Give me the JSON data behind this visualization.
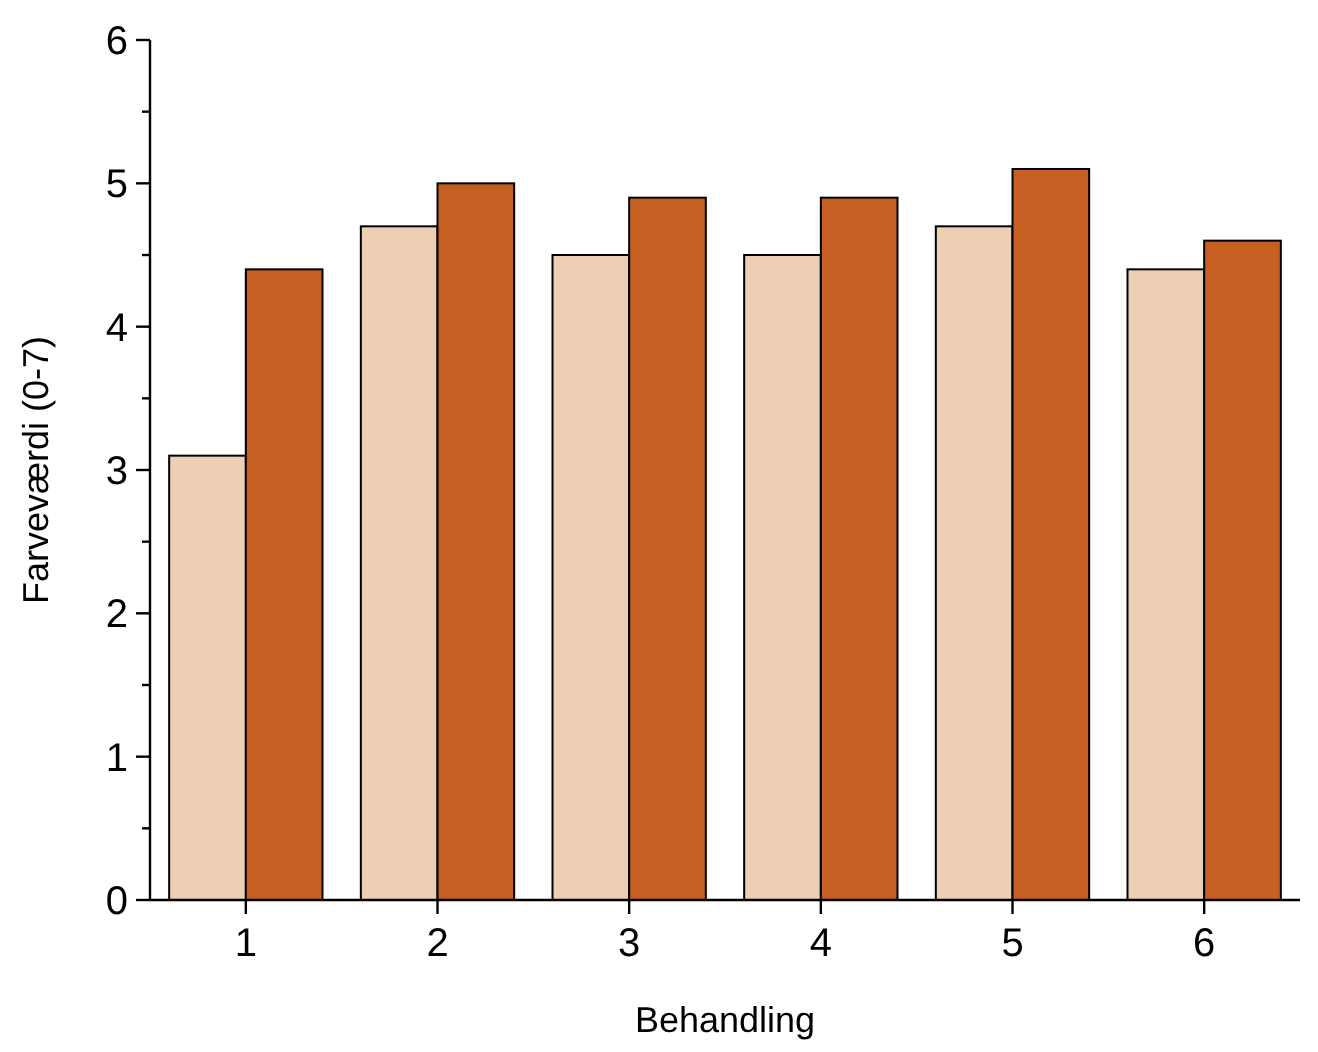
{
  "chart_data": {
    "type": "bar",
    "xlabel": "Behandling",
    "ylabel": "Farveværdi (0-7)",
    "categories": [
      "1",
      "2",
      "3",
      "4",
      "5",
      "6"
    ],
    "series": [
      {
        "color": "#edcfb4",
        "values": [
          3.1,
          4.7,
          4.5,
          4.5,
          4.7,
          4.4
        ]
      },
      {
        "color": "#c55f22",
        "values": [
          4.4,
          5.0,
          4.9,
          4.9,
          5.1,
          4.6
        ]
      }
    ],
    "ylim": [
      0,
      6
    ],
    "yticks": [
      0,
      {
        "value": 0.5,
        "label": null
      },
      1,
      {
        "value": 1.5,
        "label": null
      },
      2,
      {
        "value": 2.5,
        "label": null
      },
      3,
      {
        "value": 3.5,
        "label": null
      },
      4,
      {
        "value": 4.5,
        "label": null
      },
      5,
      {
        "value": 5.5,
        "label": null
      },
      6
    ]
  }
}
